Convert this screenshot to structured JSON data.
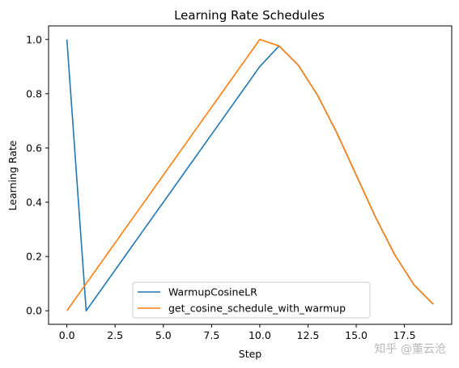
{
  "chart_data": {
    "type": "line",
    "title": "Learning Rate Schedules",
    "xlabel": "Step",
    "ylabel": "Learning Rate",
    "xlim": [
      -0.95,
      19.95
    ],
    "ylim": [
      -0.05,
      1.05
    ],
    "xticks": [
      0.0,
      2.5,
      5.0,
      7.5,
      10.0,
      12.5,
      15.0,
      17.5
    ],
    "xtick_labels": [
      "0.0",
      "2.5",
      "5.0",
      "7.5",
      "10.0",
      "12.5",
      "15.0",
      "17.5"
    ],
    "yticks": [
      0.0,
      0.2,
      0.4,
      0.6,
      0.8,
      1.0
    ],
    "ytick_labels": [
      "0.0",
      "0.2",
      "0.4",
      "0.6",
      "0.8",
      "1.0"
    ],
    "grid": false,
    "legend_position": "lower-center",
    "x": [
      0,
      1,
      2,
      3,
      4,
      5,
      6,
      7,
      8,
      9,
      10,
      11,
      12,
      13,
      14,
      15,
      16,
      17,
      18,
      19
    ],
    "series": [
      {
        "name": "WarmupCosineLR",
        "color": "#1f77b4",
        "values": [
          1.0,
          0.0,
          0.1,
          0.2,
          0.3,
          0.4,
          0.5,
          0.6,
          0.7,
          0.8,
          0.9,
          0.976,
          0.905,
          0.794,
          0.655,
          0.5,
          0.345,
          0.206,
          0.095,
          0.024
        ]
      },
      {
        "name": "get_cosine_schedule_with_warmup",
        "color": "#ff7f0e",
        "values": [
          0.0,
          0.1,
          0.2,
          0.3,
          0.4,
          0.5,
          0.6,
          0.7,
          0.8,
          0.9,
          1.0,
          0.976,
          0.905,
          0.794,
          0.655,
          0.5,
          0.345,
          0.206,
          0.095,
          0.024
        ]
      }
    ]
  },
  "watermark": "知乎 @董云沧"
}
